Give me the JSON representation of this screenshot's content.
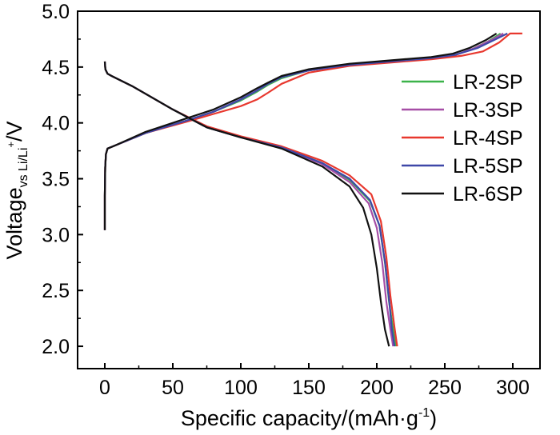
{
  "chart_data": {
    "type": "line",
    "xlabel": {
      "main": "Specific capacity/(mAh·g",
      "sup": "-1",
      "close": ")"
    },
    "ylabel": {
      "main": "Voltage",
      "sub": "vs Li/Li",
      "sup": "+",
      "unit": "/V"
    },
    "xlim": [
      -20,
      320
    ],
    "ylim": [
      1.8,
      5.0
    ],
    "xticks": [
      "0",
      "50",
      "100",
      "150",
      "200",
      "250",
      "300"
    ],
    "yticks": [
      "2.0",
      "2.5",
      "3.0",
      "3.5",
      "4.0",
      "4.5",
      "5.0"
    ],
    "grid": false,
    "legend_position": "right",
    "series": [
      {
        "name": "LR-2SP",
        "color": "#3cb34a",
        "charge_end": 291,
        "discharge_end": 214,
        "charge": [
          [
            0,
            3.04
          ],
          [
            0,
            3.35
          ],
          [
            0.3,
            3.6
          ],
          [
            0.8,
            3.72
          ],
          [
            2,
            3.77
          ],
          [
            8,
            3.8
          ],
          [
            30,
            3.91
          ],
          [
            60,
            4.02
          ],
          [
            80,
            4.1
          ],
          [
            100,
            4.2
          ],
          [
            112,
            4.28
          ],
          [
            120,
            4.34
          ],
          [
            130,
            4.4
          ],
          [
            150,
            4.47
          ],
          [
            180,
            4.52
          ],
          [
            210,
            4.55
          ],
          [
            240,
            4.58
          ],
          [
            258,
            4.61
          ],
          [
            270,
            4.66
          ],
          [
            282,
            4.73
          ],
          [
            291,
            4.8
          ]
        ],
        "discharge": [
          [
            0,
            4.55
          ],
          [
            0.4,
            4.48
          ],
          [
            2,
            4.44
          ],
          [
            5,
            4.42
          ],
          [
            20,
            4.33
          ],
          [
            50,
            4.12
          ],
          [
            75,
            3.96
          ],
          [
            100,
            3.87
          ],
          [
            130,
            3.78
          ],
          [
            160,
            3.64
          ],
          [
            180,
            3.49
          ],
          [
            195,
            3.3
          ],
          [
            202,
            3.08
          ],
          [
            206,
            2.75
          ],
          [
            209,
            2.4
          ],
          [
            212,
            2.15
          ],
          [
            214,
            2.0
          ]
        ]
      },
      {
        "name": "LR-3SP",
        "color": "#a64ea6",
        "charge_end": 293,
        "discharge_end": 212,
        "charge": [
          [
            0,
            3.04
          ],
          [
            0,
            3.35
          ],
          [
            0.3,
            3.6
          ],
          [
            0.8,
            3.72
          ],
          [
            2,
            3.77
          ],
          [
            8,
            3.8
          ],
          [
            30,
            3.91
          ],
          [
            60,
            4.02
          ],
          [
            80,
            4.1
          ],
          [
            100,
            4.21
          ],
          [
            112,
            4.29
          ],
          [
            120,
            4.35
          ],
          [
            130,
            4.41
          ],
          [
            150,
            4.47
          ],
          [
            180,
            4.52
          ],
          [
            210,
            4.55
          ],
          [
            240,
            4.58
          ],
          [
            258,
            4.61
          ],
          [
            272,
            4.67
          ],
          [
            284,
            4.74
          ],
          [
            293,
            4.8
          ]
        ],
        "discharge": [
          [
            0,
            4.55
          ],
          [
            0.4,
            4.48
          ],
          [
            2,
            4.44
          ],
          [
            5,
            4.42
          ],
          [
            20,
            4.33
          ],
          [
            50,
            4.12
          ],
          [
            75,
            3.96
          ],
          [
            100,
            3.87
          ],
          [
            130,
            3.78
          ],
          [
            160,
            3.63
          ],
          [
            180,
            3.47
          ],
          [
            194,
            3.28
          ],
          [
            200,
            3.06
          ],
          [
            204,
            2.75
          ],
          [
            207,
            2.4
          ],
          [
            210,
            2.15
          ],
          [
            212,
            2.0
          ]
        ]
      },
      {
        "name": "LR-4SP",
        "color": "#e8382e",
        "charge_end": 307,
        "discharge_end": 215,
        "charge": [
          [
            0,
            3.04
          ],
          [
            0,
            3.35
          ],
          [
            0.3,
            3.6
          ],
          [
            0.8,
            3.72
          ],
          [
            2,
            3.77
          ],
          [
            8,
            3.8
          ],
          [
            30,
            3.91
          ],
          [
            60,
            4.01
          ],
          [
            80,
            4.08
          ],
          [
            100,
            4.15
          ],
          [
            112,
            4.21
          ],
          [
            120,
            4.27
          ],
          [
            130,
            4.35
          ],
          [
            150,
            4.45
          ],
          [
            180,
            4.51
          ],
          [
            210,
            4.54
          ],
          [
            240,
            4.57
          ],
          [
            262,
            4.6
          ],
          [
            278,
            4.64
          ],
          [
            290,
            4.72
          ],
          [
            298,
            4.8
          ],
          [
            307,
            4.8
          ]
        ],
        "discharge": [
          [
            0,
            4.55
          ],
          [
            0.4,
            4.48
          ],
          [
            2,
            4.44
          ],
          [
            5,
            4.42
          ],
          [
            20,
            4.33
          ],
          [
            50,
            4.12
          ],
          [
            75,
            3.97
          ],
          [
            100,
            3.88
          ],
          [
            130,
            3.79
          ],
          [
            160,
            3.66
          ],
          [
            180,
            3.53
          ],
          [
            196,
            3.36
          ],
          [
            203,
            3.12
          ],
          [
            207,
            2.8
          ],
          [
            210,
            2.45
          ],
          [
            213,
            2.17
          ],
          [
            215,
            2.0
          ]
        ]
      },
      {
        "name": "LR-5SP",
        "color": "#3f48a8",
        "charge_end": 296,
        "discharge_end": 213,
        "charge": [
          [
            0,
            3.04
          ],
          [
            0,
            3.35
          ],
          [
            0.3,
            3.6
          ],
          [
            0.8,
            3.72
          ],
          [
            2,
            3.77
          ],
          [
            8,
            3.8
          ],
          [
            30,
            3.91
          ],
          [
            60,
            4.02
          ],
          [
            80,
            4.1
          ],
          [
            100,
            4.21
          ],
          [
            112,
            4.29
          ],
          [
            120,
            4.35
          ],
          [
            130,
            4.41
          ],
          [
            150,
            4.47
          ],
          [
            180,
            4.52
          ],
          [
            210,
            4.55
          ],
          [
            240,
            4.58
          ],
          [
            258,
            4.61
          ],
          [
            274,
            4.67
          ],
          [
            286,
            4.74
          ],
          [
            296,
            4.8
          ]
        ],
        "discharge": [
          [
            0,
            4.55
          ],
          [
            0.4,
            4.48
          ],
          [
            2,
            4.44
          ],
          [
            5,
            4.42
          ],
          [
            20,
            4.33
          ],
          [
            50,
            4.12
          ],
          [
            75,
            3.96
          ],
          [
            100,
            3.87
          ],
          [
            130,
            3.78
          ],
          [
            160,
            3.64
          ],
          [
            180,
            3.5
          ],
          [
            195,
            3.31
          ],
          [
            202,
            3.08
          ],
          [
            206,
            2.76
          ],
          [
            209,
            2.42
          ],
          [
            211,
            2.16
          ],
          [
            213,
            2.0
          ]
        ]
      },
      {
        "name": "LR-6SP",
        "color": "#111111",
        "charge_end": 288,
        "discharge_end": 209,
        "charge": [
          [
            0,
            3.04
          ],
          [
            0,
            3.35
          ],
          [
            0.3,
            3.6
          ],
          [
            0.8,
            3.72
          ],
          [
            2,
            3.77
          ],
          [
            8,
            3.8
          ],
          [
            30,
            3.92
          ],
          [
            60,
            4.04
          ],
          [
            80,
            4.12
          ],
          [
            100,
            4.23
          ],
          [
            112,
            4.31
          ],
          [
            120,
            4.36
          ],
          [
            130,
            4.42
          ],
          [
            150,
            4.48
          ],
          [
            180,
            4.53
          ],
          [
            210,
            4.56
          ],
          [
            240,
            4.59
          ],
          [
            256,
            4.62
          ],
          [
            268,
            4.67
          ],
          [
            280,
            4.74
          ],
          [
            288,
            4.8
          ]
        ],
        "discharge": [
          [
            0,
            4.55
          ],
          [
            0.4,
            4.48
          ],
          [
            2,
            4.44
          ],
          [
            5,
            4.42
          ],
          [
            20,
            4.33
          ],
          [
            50,
            4.12
          ],
          [
            75,
            3.96
          ],
          [
            100,
            3.87
          ],
          [
            130,
            3.77
          ],
          [
            160,
            3.61
          ],
          [
            180,
            3.43
          ],
          [
            190,
            3.24
          ],
          [
            196,
            3.0
          ],
          [
            200,
            2.7
          ],
          [
            203,
            2.4
          ],
          [
            206,
            2.15
          ],
          [
            209,
            2.0
          ]
        ]
      }
    ]
  }
}
